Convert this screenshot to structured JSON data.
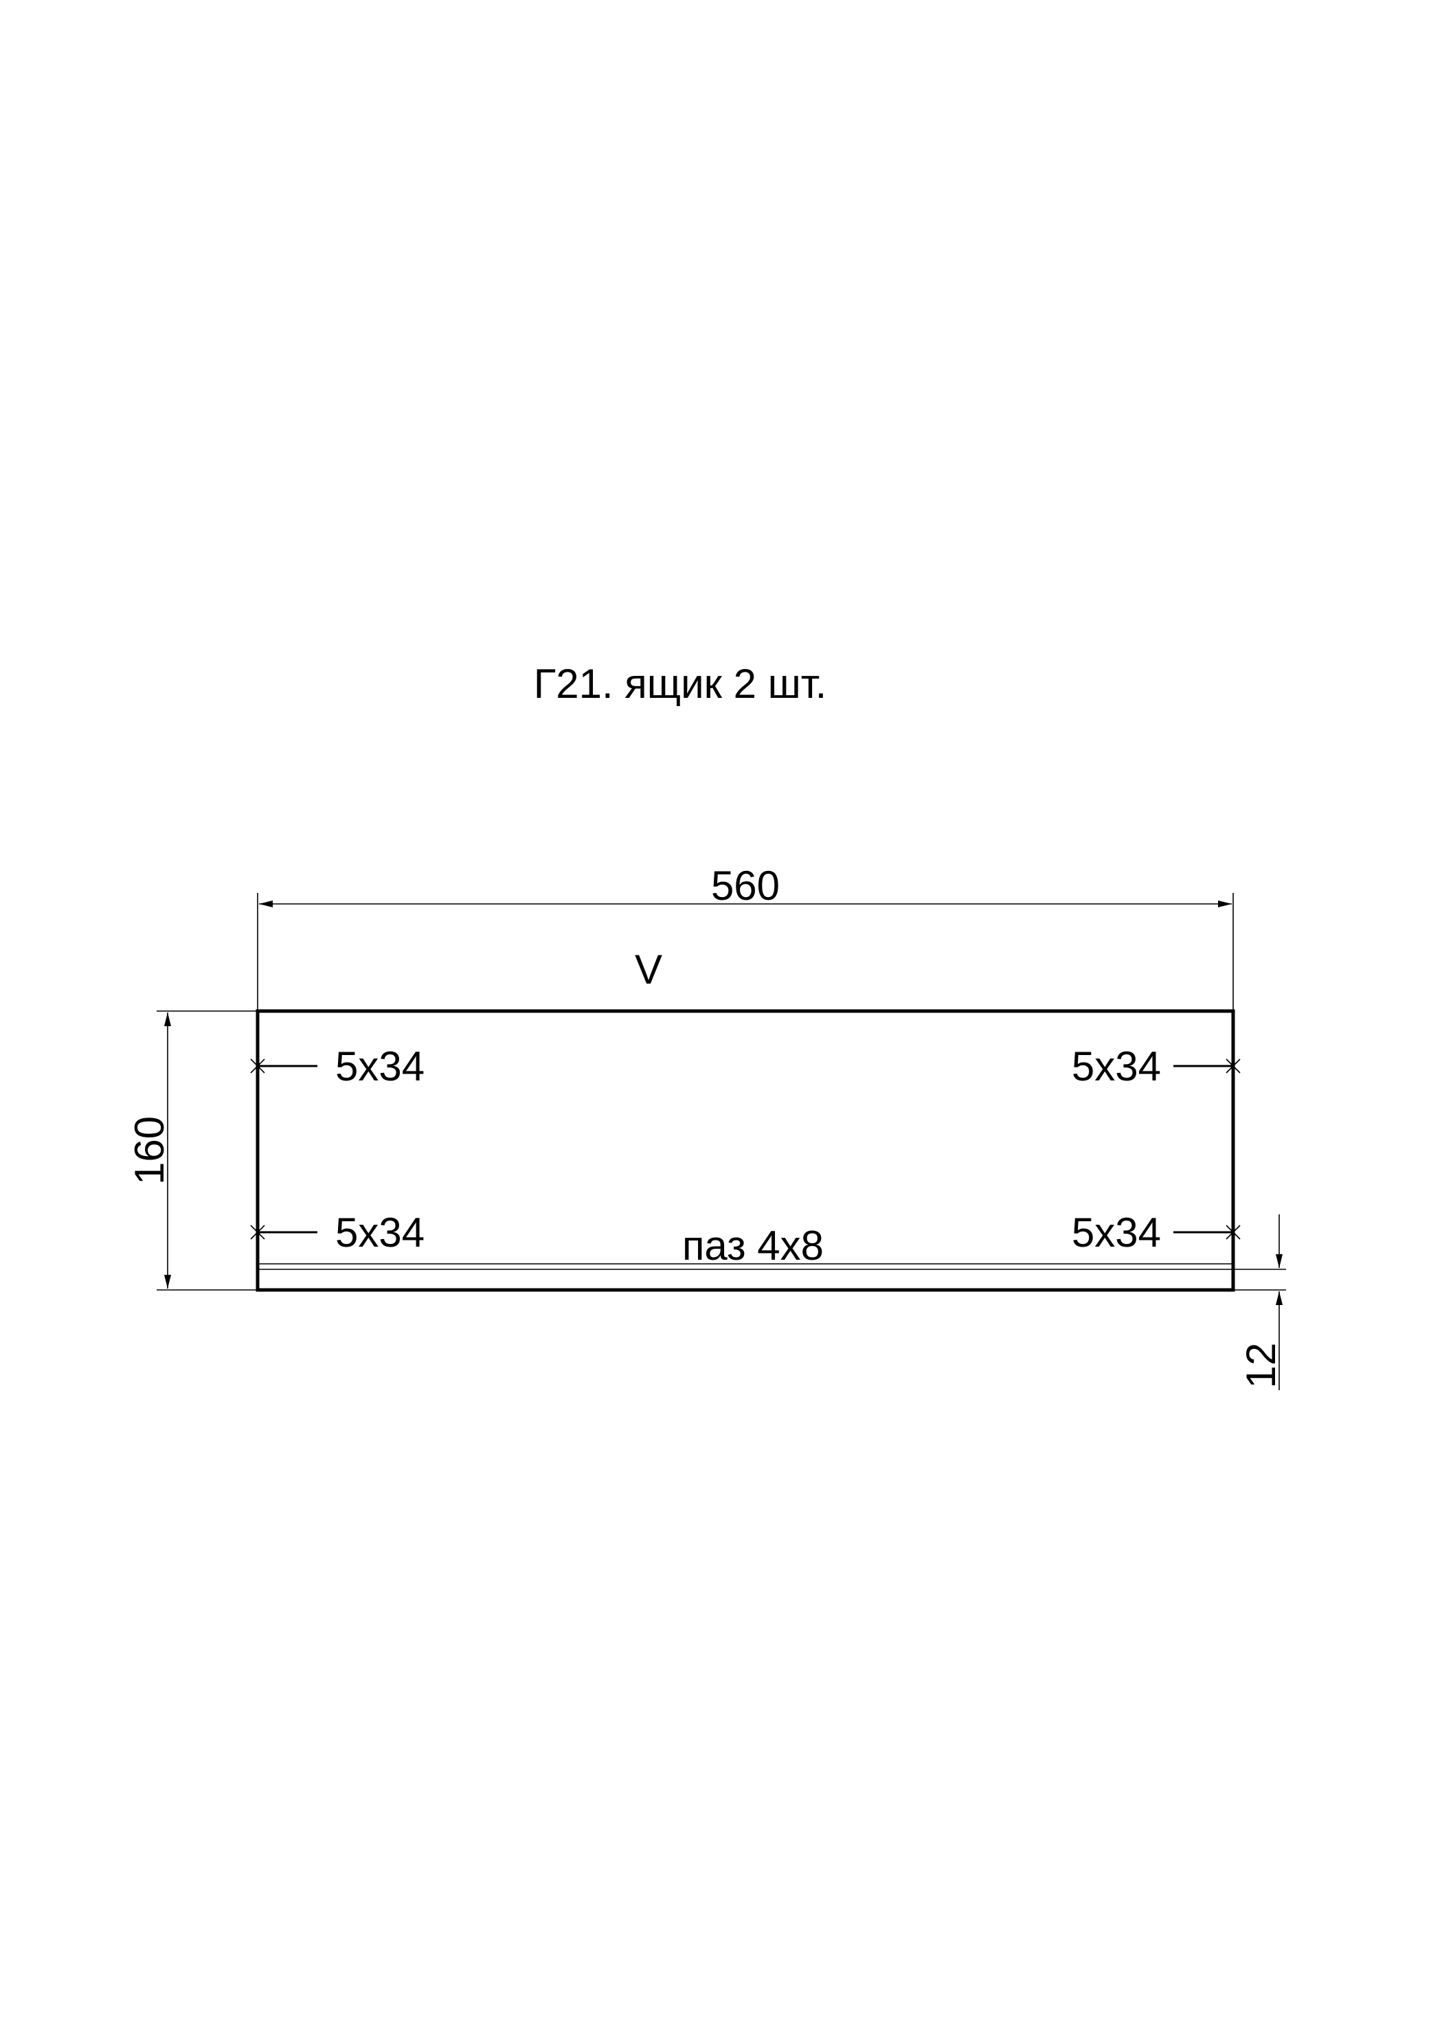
{
  "title": "Г21. ящик 2 шт.",
  "dimensions": {
    "width": "560",
    "height": "160",
    "groove_offset": "12"
  },
  "grain_mark": "V",
  "holes": {
    "top_left": "5x34",
    "top_right": "5x34",
    "bottom_left": "5x34",
    "bottom_right": "5x34"
  },
  "groove_label": "паз 4x8"
}
